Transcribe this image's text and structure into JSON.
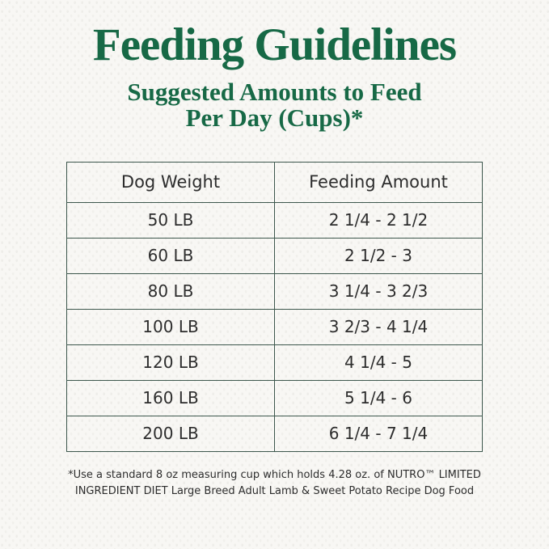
{
  "colors": {
    "brand_green": "#176946",
    "table_border": "#3e584e",
    "text_dark": "#2d2d2d",
    "background": "#f8f7f4"
  },
  "header": {
    "title": "Feeding Guidelines",
    "subtitle_line1": "Suggested Amounts to Feed",
    "subtitle_line2": "Per Day (Cups)*"
  },
  "table": {
    "columns": [
      "Dog Weight",
      "Feeding Amount"
    ],
    "rows": [
      {
        "weight": "50 LB",
        "amount": "2 1/4 - 2 1/2"
      },
      {
        "weight": "60 LB",
        "amount": "2 1/2 - 3"
      },
      {
        "weight": "80 LB",
        "amount": "3 1/4 - 3 2/3"
      },
      {
        "weight": "100 LB",
        "amount": "3 2/3 - 4 1/4"
      },
      {
        "weight": "120 LB",
        "amount": "4 1/4 - 5"
      },
      {
        "weight": "160 LB",
        "amount": "5 1/4 - 6"
      },
      {
        "weight": "200 LB",
        "amount": "6 1/4 - 7 1/4"
      }
    ]
  },
  "footnote": {
    "line1": "*Use a standard 8 oz measuring cup which holds 4.28 oz. of NUTRO™ LIMITED",
    "line2": "INGREDIENT DIET Large Breed Adult Lamb & Sweet Potato Recipe Dog Food"
  }
}
